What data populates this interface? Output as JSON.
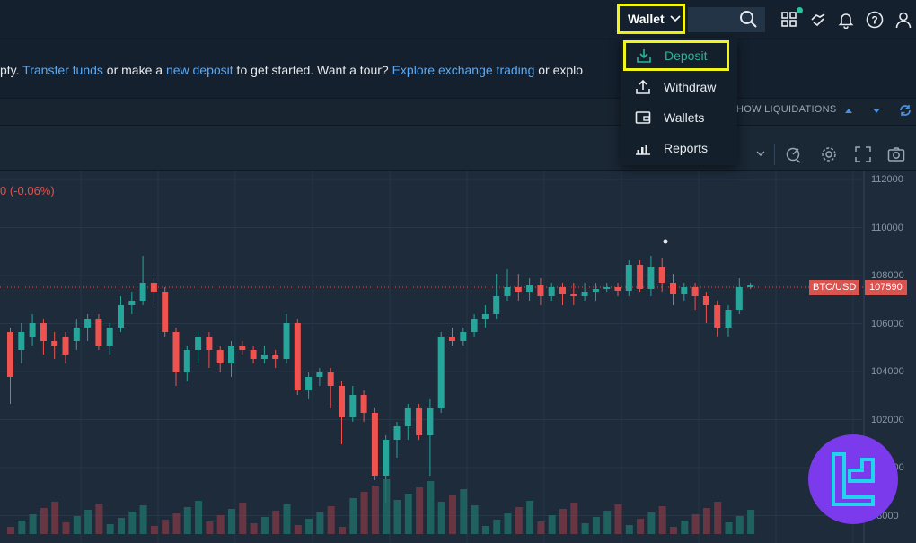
{
  "topbar": {
    "wallet_label": "Wallet",
    "icons": [
      "search-icon",
      "apps-icon",
      "handshake-icon",
      "bell-icon",
      "help-icon",
      "user-icon"
    ]
  },
  "banner": {
    "part1": "pty. ",
    "link1": "Transfer funds",
    "part2": " or make a ",
    "link2": "new deposit",
    "part3": " to get started. Want a tour? ",
    "link3": "Explore exchange trading",
    "part4": " or explo"
  },
  "toolbar": {
    "liquidations_label": "HOW LIQUIDATIONS"
  },
  "menu": {
    "items": [
      {
        "label": "Deposit",
        "icon": "download-icon"
      },
      {
        "label": "Withdraw",
        "icon": "upload-icon"
      },
      {
        "label": "Wallets",
        "icon": "wallet-icon"
      },
      {
        "label": "Reports",
        "icon": "bar-chart-icon"
      }
    ]
  },
  "chart": {
    "change": "0 (-0.06%)",
    "pair": "BTC/USD",
    "price": "107590",
    "axis": [
      "112000",
      "110000",
      "108000",
      "106000",
      "104000",
      "102000",
      "100000",
      "98000"
    ]
  },
  "colors": {
    "accent_yellow": "#f2f51b",
    "up": "#26a69a",
    "down": "#ef5350",
    "link": "#5ea9f0"
  }
}
